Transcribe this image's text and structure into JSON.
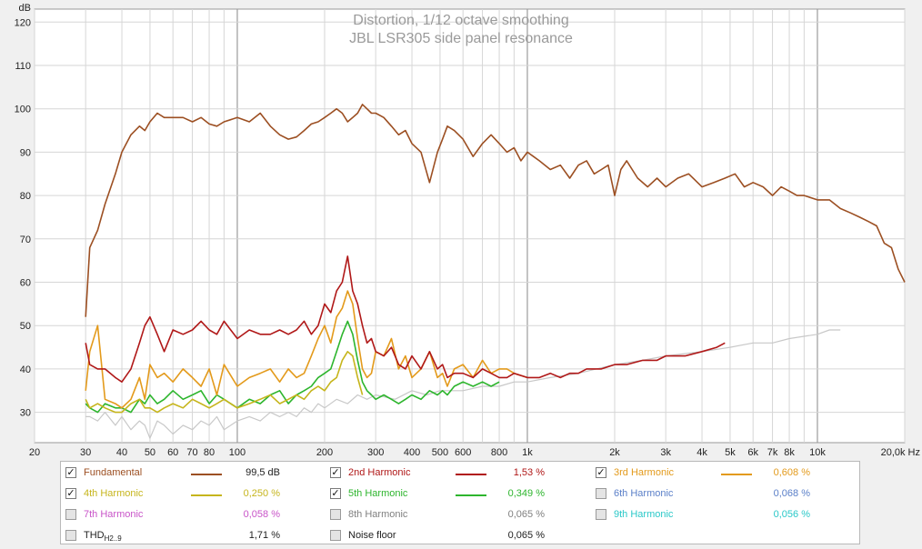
{
  "chart_data": {
    "type": "line",
    "title": "Distortion, 1/12 octave smoothing",
    "subtitle": "JBL LSR305 side panel resonance",
    "y_unit": "dB",
    "x_unit": "Hz",
    "x_scale": "log",
    "xlim": [
      20,
      20000
    ],
    "ylim": [
      23,
      123
    ],
    "y_ticks": [
      30,
      40,
      50,
      60,
      70,
      80,
      90,
      100,
      110,
      120
    ],
    "y_tick_labels": [
      "30",
      "40",
      "50",
      "60",
      "70",
      "80",
      "90",
      "100",
      "110",
      "120"
    ],
    "x_ticks": [
      20,
      30,
      40,
      50,
      60,
      70,
      80,
      100,
      200,
      300,
      400,
      500,
      600,
      800,
      1000,
      2000,
      3000,
      4000,
      5000,
      6000,
      7000,
      8000,
      10000,
      20000
    ],
    "x_tick_labels": [
      "20",
      "30",
      "40",
      "50",
      "60",
      "70",
      "80",
      "100",
      "200",
      "300",
      "400",
      "500",
      "600",
      "800",
      "1k",
      "2k",
      "3k",
      "4k",
      "5k",
      "6k",
      "7k",
      "8k",
      "10k",
      "20,0k Hz"
    ],
    "series": [
      {
        "name": "Fundamental",
        "color": "#9c4f22",
        "x": [
          30,
          31,
          33,
          35,
          38,
          40,
          43,
          46,
          48,
          50,
          53,
          56,
          60,
          65,
          70,
          75,
          80,
          85,
          90,
          100,
          110,
          120,
          130,
          140,
          150,
          160,
          170,
          180,
          190,
          200,
          210,
          220,
          230,
          240,
          250,
          260,
          270,
          280,
          290,
          300,
          320,
          340,
          360,
          380,
          400,
          430,
          460,
          490,
          510,
          530,
          560,
          600,
          650,
          700,
          750,
          800,
          850,
          900,
          950,
          1000,
          1050,
          1100,
          1200,
          1300,
          1400,
          1500,
          1600,
          1700,
          1800,
          1900,
          2000,
          2100,
          2200,
          2400,
          2600,
          2800,
          3000,
          3300,
          3600,
          4000,
          4400,
          4800,
          5200,
          5600,
          6000,
          6500,
          7000,
          7500,
          8000,
          8500,
          9000,
          10000,
          11000,
          12000,
          13000,
          14000,
          15000,
          16000,
          17000,
          18000,
          19000,
          20000
        ],
        "y": [
          52,
          68,
          72,
          78,
          85,
          90,
          94,
          96,
          95,
          97,
          99,
          98,
          98,
          98,
          97,
          98,
          96.5,
          96,
          97,
          98,
          97,
          99,
          96,
          94,
          93,
          93.5,
          95,
          96.5,
          97,
          98,
          99,
          100,
          99,
          97,
          98,
          99,
          101,
          100,
          99,
          99,
          98,
          96,
          94,
          95,
          92,
          90,
          83,
          90,
          93,
          96,
          95,
          93,
          89,
          92,
          94,
          92,
          90,
          91,
          88,
          90,
          89,
          88,
          86,
          87,
          84,
          87,
          88,
          85,
          86,
          87,
          80,
          86,
          88,
          84,
          82,
          84,
          82,
          84,
          85,
          82,
          83,
          84,
          85,
          82,
          83,
          82,
          80,
          82,
          81,
          80,
          80,
          79,
          79,
          77,
          76,
          75,
          74,
          73,
          69,
          68,
          63,
          60
        ],
        "value_label": "99,5 dB"
      },
      {
        "name": "2nd Harmonic",
        "color": "#b01818",
        "x": [
          30,
          31,
          33,
          35,
          38,
          40,
          43,
          46,
          48,
          50,
          53,
          56,
          60,
          65,
          70,
          75,
          80,
          85,
          90,
          100,
          110,
          120,
          130,
          140,
          150,
          160,
          170,
          180,
          190,
          200,
          210,
          220,
          230,
          240,
          250,
          260,
          270,
          280,
          290,
          300,
          320,
          340,
          360,
          380,
          400,
          430,
          460,
          490,
          510,
          530,
          560,
          600,
          650,
          700,
          750,
          800,
          850,
          900,
          1000,
          1100,
          1200,
          1300,
          1400,
          1500,
          1600,
          1800,
          2000,
          2200,
          2500,
          2800,
          3000,
          3500,
          4000,
          4500,
          4800
        ],
        "y": [
          46,
          41,
          40,
          40,
          38,
          37,
          40,
          46,
          50,
          52,
          48,
          44,
          49,
          48,
          49,
          51,
          49,
          48,
          51,
          47,
          49,
          48,
          48,
          49,
          48,
          49,
          51,
          48,
          50,
          55,
          53,
          58,
          60,
          66,
          58,
          55,
          50,
          46,
          47,
          44,
          43,
          45,
          41,
          40,
          43,
          40,
          44,
          40,
          41,
          38,
          39,
          39,
          38,
          40,
          39,
          38,
          38,
          39,
          38,
          38,
          39,
          38,
          39,
          39,
          40,
          40,
          41,
          41,
          42,
          42,
          43,
          43,
          44,
          45,
          46
        ],
        "value_label": "1,53 %"
      },
      {
        "name": "3rd Harmonic",
        "color": "#e39a1b",
        "x": [
          30,
          31,
          33,
          35,
          38,
          40,
          43,
          46,
          48,
          50,
          53,
          56,
          60,
          65,
          70,
          75,
          80,
          85,
          90,
          100,
          110,
          120,
          130,
          140,
          150,
          160,
          170,
          180,
          190,
          200,
          210,
          220,
          230,
          240,
          250,
          260,
          270,
          280,
          290,
          300,
          320,
          340,
          360,
          380,
          400,
          430,
          460,
          490,
          510,
          530,
          560,
          600,
          650,
          700,
          750,
          800,
          850,
          900,
          1000
        ],
        "y": [
          35,
          44,
          50,
          33,
          32,
          31,
          33,
          38,
          33,
          41,
          38,
          39,
          37,
          40,
          38,
          36,
          40,
          34,
          41,
          36,
          38,
          39,
          40,
          37,
          40,
          38,
          39,
          43,
          47,
          50,
          46,
          52,
          54,
          58,
          55,
          47,
          40,
          38,
          39,
          44,
          43,
          47,
          40,
          43,
          38,
          40,
          44,
          38,
          39,
          36,
          40,
          41,
          38,
          42,
          39,
          40,
          40,
          39,
          38
        ],
        "value_label": "0,608 %"
      },
      {
        "name": "4th Harmonic",
        "color": "#c6b51c",
        "x": [
          30,
          31,
          33,
          35,
          38,
          40,
          43,
          46,
          48,
          50,
          53,
          56,
          60,
          65,
          70,
          75,
          80,
          85,
          90,
          100,
          110,
          120,
          130,
          140,
          150,
          160,
          170,
          180,
          190,
          200,
          210,
          220,
          230,
          240,
          250,
          260,
          270
        ],
        "y": [
          33,
          31,
          32,
          31,
          30,
          30,
          32,
          33,
          31,
          31,
          30,
          31,
          32,
          31,
          33,
          32,
          31,
          32,
          33,
          31,
          32,
          33,
          34,
          32,
          33,
          34,
          33,
          35,
          36,
          35,
          37,
          38,
          42,
          44,
          43,
          38,
          34
        ],
        "value_label": "0,250 %"
      },
      {
        "name": "5th Harmonic",
        "color": "#2db52d",
        "x": [
          30,
          31,
          33,
          35,
          38,
          40,
          43,
          46,
          48,
          50,
          53,
          56,
          60,
          65,
          70,
          75,
          80,
          85,
          90,
          100,
          110,
          120,
          130,
          140,
          150,
          160,
          170,
          180,
          190,
          200,
          210,
          220,
          230,
          240,
          250,
          260,
          270,
          280,
          290,
          300,
          320,
          340,
          360,
          380,
          400,
          430,
          460,
          490,
          510,
          530,
          560,
          600,
          650,
          700,
          750,
          800
        ],
        "y": [
          32,
          31,
          30,
          32,
          31,
          31,
          30,
          33,
          32,
          34,
          32,
          33,
          35,
          33,
          34,
          35,
          32,
          34,
          33,
          31,
          33,
          32,
          34,
          35,
          32,
          34,
          35,
          36,
          38,
          39,
          40,
          44,
          48,
          51,
          48,
          42,
          37,
          35,
          34,
          33,
          34,
          33,
          32,
          33,
          34,
          33,
          35,
          34,
          35,
          34,
          36,
          37,
          36,
          37,
          36,
          37
        ],
        "value_label": "0,349 %"
      },
      {
        "name": "6th Harmonic",
        "color": "#5a7fc8",
        "value_label": "0,068 %"
      },
      {
        "name": "7th Harmonic",
        "color": "#c853c8",
        "value_label": "0,058 %"
      },
      {
        "name": "8th Harmonic",
        "color": "#808080",
        "value_label": "0,065 %"
      },
      {
        "name": "9th Harmonic",
        "color": "#2ac8c8",
        "value_label": "0,056 %"
      },
      {
        "name": "Noise floor",
        "color": "#c8c8c8",
        "x": [
          30,
          31,
          33,
          35,
          38,
          40,
          43,
          46,
          48,
          50,
          53,
          56,
          60,
          65,
          70,
          75,
          80,
          85,
          90,
          100,
          110,
          120,
          130,
          140,
          150,
          160,
          170,
          180,
          190,
          200,
          220,
          240,
          260,
          280,
          300,
          350,
          400,
          450,
          500,
          600,
          700,
          800,
          900,
          1000,
          1200,
          1500,
          2000,
          2500,
          3000,
          4000,
          5000,
          6000,
          7000,
          8000,
          10000,
          11000,
          12000
        ],
        "y": [
          29,
          29,
          28,
          30,
          27,
          29,
          26,
          28,
          27,
          24,
          28,
          27,
          25,
          27,
          26,
          28,
          27,
          29,
          26,
          28,
          29,
          28,
          30,
          29,
          30,
          29,
          31,
          30,
          32,
          31,
          33,
          32,
          34,
          33,
          34,
          33,
          35,
          34,
          35,
          35,
          36,
          36,
          37,
          37,
          38,
          39,
          41,
          42,
          43,
          44,
          45,
          46,
          46,
          47,
          48,
          49,
          49
        ],
        "value_label": "0,065 %"
      }
    ]
  },
  "legend": {
    "items": [
      {
        "name": "Fundamental",
        "checked": true,
        "color": "#9c4f22",
        "label_color": "#9c4f22",
        "value": "99,5 dB",
        "value_color": "#222222",
        "show_line": true
      },
      {
        "name": "2nd Harmonic",
        "checked": true,
        "color": "#b01818",
        "label_color": "#b01818",
        "value": "1,53 %",
        "value_color": "#b01818",
        "show_line": true
      },
      {
        "name": "3rd Harmonic",
        "checked": true,
        "color": "#e39a1b",
        "label_color": "#e39a1b",
        "value": "0,608 %",
        "value_color": "#e39a1b",
        "show_line": true
      },
      {
        "name": "4th Harmonic",
        "checked": true,
        "color": "#c6b51c",
        "label_color": "#c6b51c",
        "value": "0,250 %",
        "value_color": "#c6b51c",
        "show_line": true
      },
      {
        "name": "5th Harmonic",
        "checked": true,
        "color": "#2db52d",
        "label_color": "#2db52d",
        "value": "0,349 %",
        "value_color": "#2db52d",
        "show_line": true
      },
      {
        "name": "6th Harmonic",
        "checked": false,
        "color": "#5a7fc8",
        "label_color": "#5a7fc8",
        "value": "0,068 %",
        "value_color": "#5a7fc8",
        "show_line": false
      },
      {
        "name": "7th Harmonic",
        "checked": false,
        "color": "#c853c8",
        "label_color": "#c853c8",
        "value": "0,058 %",
        "value_color": "#c853c8",
        "show_line": false
      },
      {
        "name": "8th Harmonic",
        "checked": false,
        "color": "#808080",
        "label_color": "#808080",
        "value": "0,065 %",
        "value_color": "#808080",
        "show_line": false
      },
      {
        "name": "9th Harmonic",
        "checked": false,
        "color": "#2ac8c8",
        "label_color": "#2ac8c8",
        "value": "0,056 %",
        "value_color": "#2ac8c8",
        "show_line": false
      },
      {
        "name": "THD",
        "subscript": "H2..9",
        "checked": false,
        "color": "#222222",
        "label_color": "#222222",
        "value": "1,71 %",
        "value_color": "#222222",
        "show_line": false
      },
      {
        "name": "Noise floor",
        "checked": false,
        "color": "#222222",
        "label_color": "#222222",
        "value": "0,065 %",
        "value_color": "#222222",
        "show_line": false
      }
    ]
  }
}
